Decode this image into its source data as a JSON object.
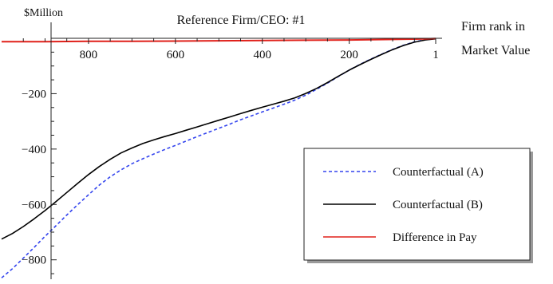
{
  "chart_data": {
    "type": "line",
    "title": "Reference  Firm/CEO: #1",
    "ylabel": "$Million",
    "xlabel_line1": "Firm rank in",
    "xlabel_line2": "Market Value",
    "x_reversed": true,
    "xlim": [
      1000,
      1
    ],
    "ylim": [
      -870,
      0
    ],
    "x_ticks": [
      {
        "value": 800,
        "label": "800"
      },
      {
        "value": 600,
        "label": "600"
      },
      {
        "value": 400,
        "label": "400"
      },
      {
        "value": 200,
        "label": "200"
      },
      {
        "value": 1,
        "label": "1"
      }
    ],
    "y_ticks": [
      {
        "value": -200,
        "label": "−200"
      },
      {
        "value": -400,
        "label": "−400"
      },
      {
        "value": -600,
        "label": "−600"
      },
      {
        "value": -800,
        "label": "−800"
      }
    ],
    "legend_position": "bottom-right",
    "series": [
      {
        "name": "Counterfactual (A)",
        "color": "#3344ee",
        "style": "dashed",
        "x": [
          1000,
          975,
          950,
          925,
          900,
          875,
          850,
          825,
          800,
          775,
          750,
          725,
          700,
          675,
          650,
          625,
          600,
          575,
          550,
          525,
          500,
          475,
          450,
          425,
          400,
          375,
          350,
          325,
          300,
          275,
          250,
          225,
          200,
          175,
          150,
          125,
          100,
          75,
          50,
          25,
          1
        ],
        "y": [
          -865,
          -832,
          -794,
          -755,
          -715,
          -677,
          -638,
          -601,
          -565,
          -530,
          -500,
          -475,
          -453,
          -435,
          -418,
          -402,
          -387,
          -371,
          -355,
          -340,
          -325,
          -310,
          -294,
          -280,
          -266,
          -252,
          -238,
          -223,
          -205,
          -184,
          -162,
          -138,
          -115,
          -94,
          -75,
          -57,
          -40,
          -25,
          -13,
          -5,
          -2
        ]
      },
      {
        "name": "Counterfactual (B)",
        "color": "#000000",
        "style": "solid",
        "x": [
          1000,
          975,
          950,
          925,
          900,
          875,
          850,
          825,
          800,
          775,
          750,
          725,
          700,
          675,
          650,
          625,
          600,
          575,
          550,
          525,
          500,
          475,
          450,
          425,
          400,
          375,
          350,
          325,
          300,
          275,
          250,
          225,
          200,
          175,
          150,
          125,
          100,
          75,
          50,
          25,
          1
        ],
        "y": [
          -725,
          -705,
          -680,
          -652,
          -622,
          -590,
          -557,
          -524,
          -492,
          -463,
          -437,
          -414,
          -396,
          -380,
          -367,
          -355,
          -344,
          -332,
          -320,
          -308,
          -296,
          -284,
          -272,
          -260,
          -249,
          -238,
          -227,
          -215,
          -199,
          -181,
          -160,
          -137,
          -115,
          -95,
          -76,
          -58,
          -41,
          -26,
          -14,
          -6,
          -2
        ]
      },
      {
        "name": "Difference in Pay",
        "color": "#e0201a",
        "style": "solid",
        "x": [
          1000,
          900,
          800,
          700,
          600,
          500,
          400,
          300,
          200,
          150,
          100,
          50,
          25,
          1
        ],
        "y": [
          -12,
          -12,
          -11,
          -11,
          -10,
          -9,
          -8,
          -7,
          -6,
          -5,
          -4,
          -3,
          -2,
          -1
        ]
      }
    ]
  }
}
